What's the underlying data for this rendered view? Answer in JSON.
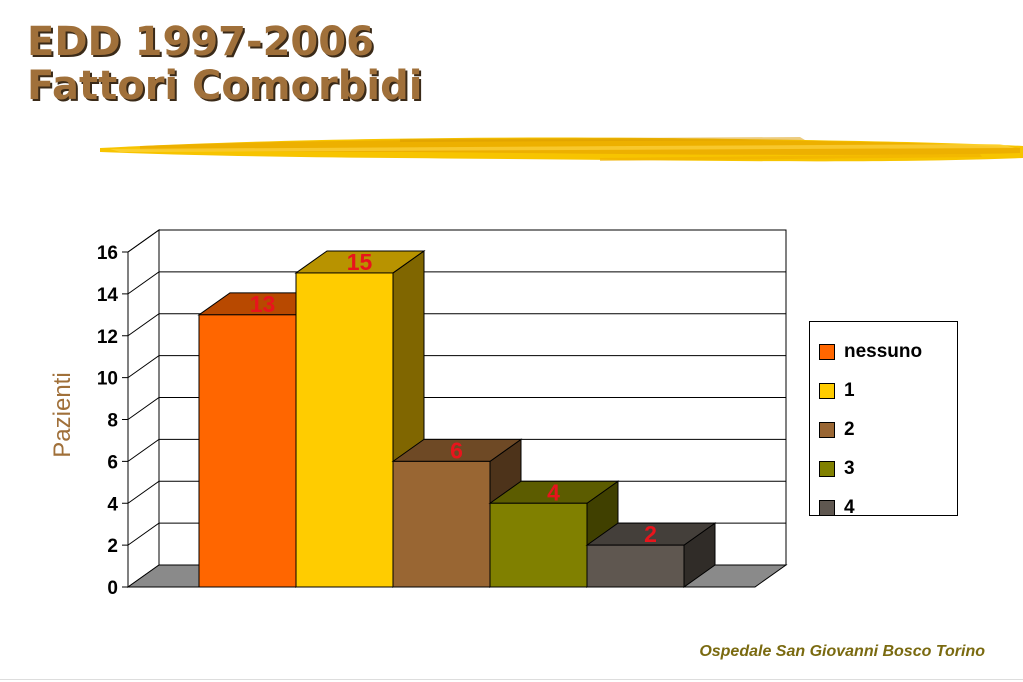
{
  "slide": {
    "title_line1": "EDD 1997-2006",
    "title_line2": "Fattori Comorbidi",
    "footer": "Ospedale San Giovanni Bosco Torino"
  },
  "colors": {
    "title": "#a0703a",
    "data_label": "#e8141c",
    "floor": "#8a8a8a"
  },
  "chart_data": {
    "type": "bar",
    "style": "3d-column",
    "ylabel": "Pazienti",
    "xlabel": "",
    "ylim": [
      0,
      16
    ],
    "yticks": [
      "0",
      "2",
      "4",
      "6",
      "8",
      "10",
      "12",
      "14",
      "16"
    ],
    "grid": true,
    "legend_position": "right",
    "series": [
      {
        "name": "nessuno",
        "value": 13,
        "label": "13",
        "color": "#ff6600"
      },
      {
        "name": "1",
        "value": 15,
        "label": "15",
        "color": "#ffcc00"
      },
      {
        "name": "2",
        "value": 6,
        "label": "6",
        "color": "#996633"
      },
      {
        "name": "3",
        "value": 4,
        "label": "4",
        "color": "#808000"
      },
      {
        "name": "4",
        "value": 2,
        "label": "2",
        "color": "#5f5750"
      }
    ]
  }
}
